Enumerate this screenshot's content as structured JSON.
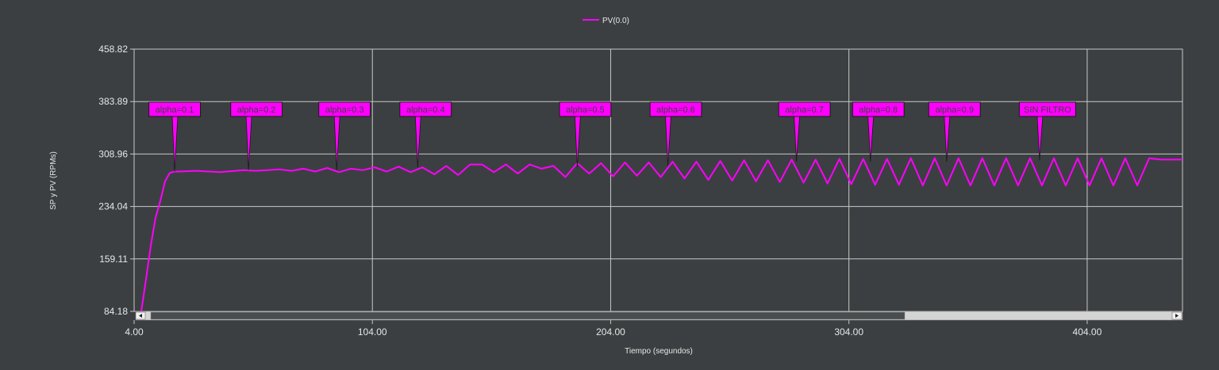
{
  "chart_data": {
    "type": "line",
    "title": "",
    "xlabel": "Tiempo (segundos)",
    "ylabel": "SP y PV (RPMs)",
    "xlim": [
      4,
      444
    ],
    "ylim": [
      84.18,
      458.82
    ],
    "xticks": [
      4,
      104,
      204,
      304,
      404
    ],
    "xtick_labels": [
      "4.00",
      "104.00",
      "204.00",
      "304.00",
      "404.00"
    ],
    "yticks": [
      84.18,
      159.11,
      234.04,
      308.96,
      383.89,
      458.82
    ],
    "ytick_labels": [
      "84.18",
      "159.11",
      "234.04",
      "308.96",
      "383.89",
      "458.82"
    ],
    "grid": true,
    "legend": "top-center",
    "colors": {
      "background": "#3c3f41",
      "grid": "#c8c8c8",
      "series": "#ff00ff",
      "annotation_fill": "#ff00ff",
      "annotation_border": "#1a1a1a"
    },
    "series": [
      {
        "name": "PV(0.0)",
        "x": [
          7,
          9,
          11,
          13,
          15,
          17,
          19,
          21,
          23,
          30,
          40,
          50,
          55,
          60,
          65,
          70,
          75,
          80,
          85,
          90,
          95,
          100,
          105,
          110,
          115,
          120,
          125,
          130,
          135,
          140,
          145,
          150,
          155,
          160,
          165,
          170,
          175,
          180,
          185,
          190,
          195,
          200,
          205,
          210,
          215,
          220,
          225,
          230,
          235,
          240,
          245,
          250,
          255,
          260,
          265,
          270,
          275,
          280,
          285,
          290,
          295,
          300,
          305,
          310,
          315,
          320,
          325,
          330,
          335,
          340,
          345,
          350,
          355,
          360,
          365,
          370,
          375,
          380,
          385,
          390,
          395,
          400,
          405,
          410,
          415,
          420,
          425,
          430,
          435,
          440,
          444
        ],
        "values": [
          84.2,
          130,
          178,
          218,
          242,
          270,
          282,
          284,
          284,
          285,
          283,
          286,
          285,
          286,
          287,
          285,
          288,
          284,
          289,
          283,
          288,
          286,
          290,
          284,
          291,
          283,
          290,
          280,
          292,
          279,
          294,
          294,
          283,
          294,
          281,
          294,
          288,
          292,
          276,
          296,
          281,
          296,
          277,
          297,
          278,
          297,
          276,
          298,
          274,
          298,
          272,
          299,
          271,
          300,
          270,
          300,
          269,
          301,
          268,
          301,
          267,
          302,
          266,
          302,
          265,
          302,
          265,
          303,
          264,
          303,
          264,
          303,
          264,
          303,
          264,
          303,
          264,
          303,
          264,
          303,
          264,
          303,
          264,
          303,
          264,
          303,
          264,
          303,
          301,
          301,
          301
        ]
      }
    ],
    "annotations": [
      {
        "text": "alpha=0.1",
        "x": 21,
        "y": 284
      },
      {
        "text": "alpha=0.2",
        "x": 52,
        "y": 286
      },
      {
        "text": "alpha=0.3",
        "x": 89,
        "y": 286
      },
      {
        "text": "alpha=0.4",
        "x": 123,
        "y": 290
      },
      {
        "text": "alpha=0.5",
        "x": 190,
        "y": 290
      },
      {
        "text": "alpha=0.6",
        "x": 228,
        "y": 292
      },
      {
        "text": "alpha=0.7",
        "x": 282,
        "y": 298
      },
      {
        "text": "alpha=0.8",
        "x": 313,
        "y": 298
      },
      {
        "text": "alpha=0.9",
        "x": 345,
        "y": 298
      },
      {
        "text": "SIN FILTRO",
        "x": 384,
        "y": 300
      }
    ]
  }
}
